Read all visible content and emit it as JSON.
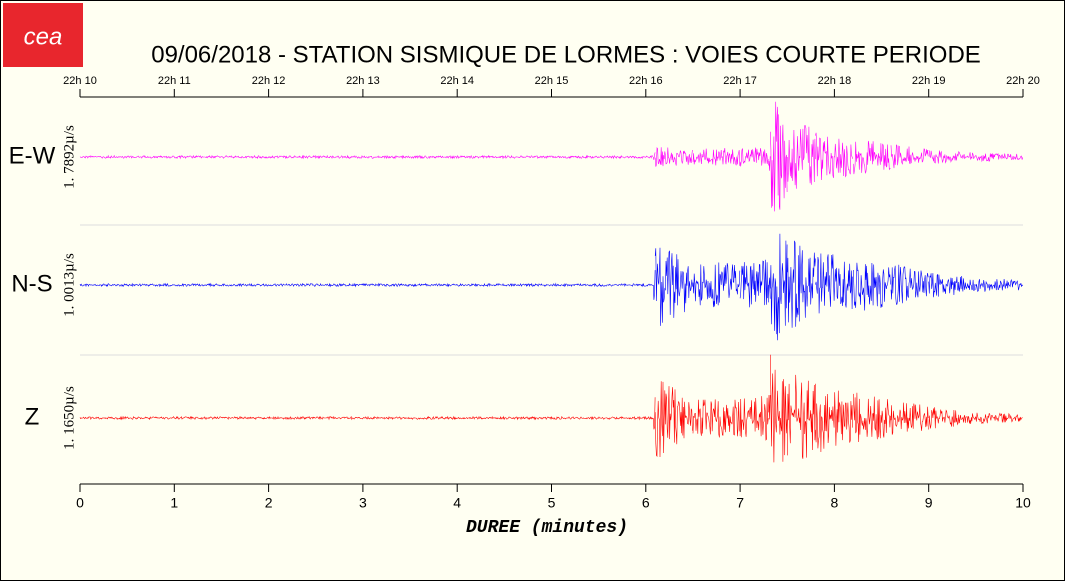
{
  "chart_data": {
    "type": "seismogram",
    "logo": "cea",
    "title": "09/06/2018  -  STATION SISMIQUE DE LORMES : VOIES COURTE PERIODE",
    "xlabel": "DUREE (minutes)",
    "xlim": [
      0,
      10
    ],
    "xticks": [
      0,
      1,
      2,
      3,
      4,
      5,
      6,
      7,
      8,
      9,
      10
    ],
    "x2ticks": [
      {
        "value": 0,
        "label": "22h 10"
      },
      {
        "value": 1,
        "label": "22h 11"
      },
      {
        "value": 2,
        "label": "22h 12"
      },
      {
        "value": 3,
        "label": "22h 13"
      },
      {
        "value": 4,
        "label": "22h 14"
      },
      {
        "value": 5,
        "label": "22h 15"
      },
      {
        "value": 6,
        "label": "22h 16"
      },
      {
        "value": 7,
        "label": "22h 17"
      },
      {
        "value": 8,
        "label": "22h 18"
      },
      {
        "value": 9,
        "label": "22h 19"
      },
      {
        "value": 10,
        "label": "22h 20"
      }
    ],
    "series": [
      {
        "name": "E-W",
        "scale": "1. 7892µ/s",
        "color": "#ff00ff",
        "x": [
          0,
          6.08,
          6.1,
          6.5,
          7.0,
          7.3,
          7.32,
          7.5,
          7.8,
          8.2,
          8.6,
          9.0,
          9.5,
          10
        ],
        "amplitude": [
          0.02,
          0.02,
          0.16,
          0.12,
          0.15,
          0.15,
          1.0,
          0.7,
          0.4,
          0.3,
          0.2,
          0.12,
          0.07,
          0.05
        ]
      },
      {
        "name": "N-S",
        "scale": "1. 0013µ/s",
        "color": "#0000ff",
        "x": [
          0,
          6.08,
          6.1,
          6.5,
          7.0,
          7.3,
          7.32,
          7.5,
          7.8,
          8.2,
          8.6,
          9.0,
          9.5,
          10
        ],
        "amplitude": [
          0.02,
          0.02,
          0.7,
          0.35,
          0.35,
          0.4,
          0.95,
          0.75,
          0.5,
          0.45,
          0.35,
          0.2,
          0.12,
          0.08
        ]
      },
      {
        "name": "Z",
        "scale": "1. 1650µ/s",
        "color": "#ff0000",
        "x": [
          0,
          6.08,
          6.1,
          6.5,
          7.0,
          7.3,
          7.32,
          7.5,
          7.8,
          8.2,
          8.6,
          9.0,
          9.5,
          10
        ],
        "amplitude": [
          0.02,
          0.02,
          0.65,
          0.3,
          0.3,
          0.35,
          1.0,
          0.8,
          0.55,
          0.4,
          0.3,
          0.18,
          0.1,
          0.05
        ]
      }
    ]
  }
}
